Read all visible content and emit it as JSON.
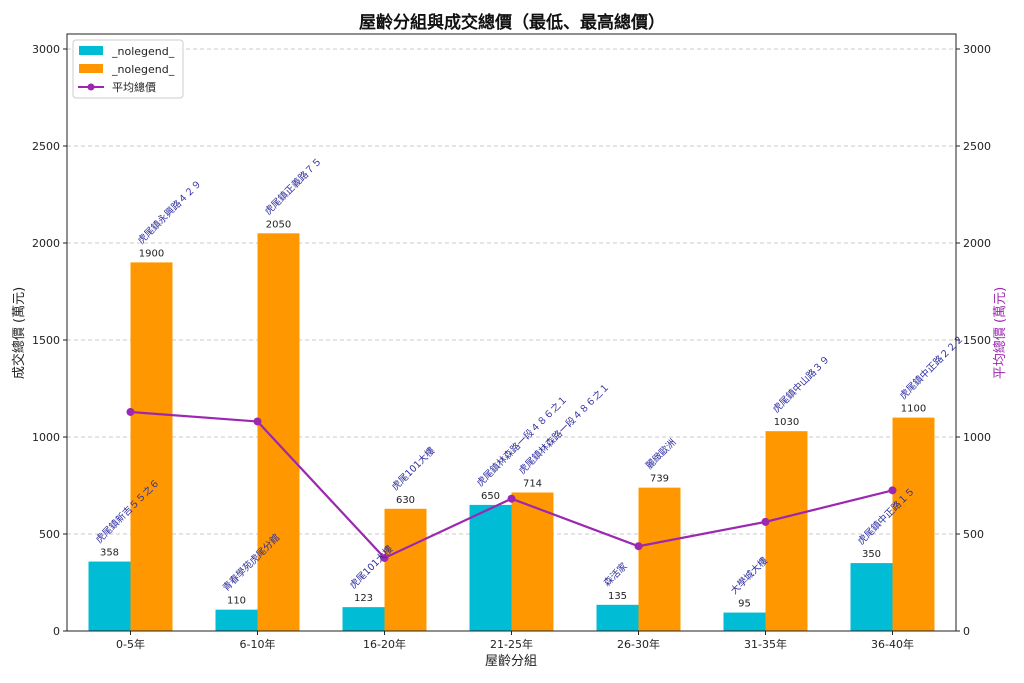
{
  "chart_data": {
    "type": "bar",
    "title": "屋齡分組與成交總價（最低、最高總價）",
    "xlabel": "屋齡分組",
    "ylabel": "成交總價 (萬元)",
    "ylabel_right": "平均總價 (萬元)",
    "ylim": [
      0,
      3000
    ],
    "yticks": [
      0,
      500,
      1000,
      1500,
      2000,
      2500,
      3000
    ],
    "grid": true,
    "legend_position": "upper left",
    "categories": [
      "0-5年",
      "6-10年",
      "16-20年",
      "21-25年",
      "26-30年",
      "31-35年",
      "36-40年"
    ],
    "series": [
      {
        "name": "_nolegend_",
        "kind": "bar",
        "color": "#00bcd4",
        "values": [
          358,
          110,
          123,
          650,
          135,
          95,
          350
        ],
        "annotations": [
          "虎尾鎮新吉５５之６",
          "青春學苑虎尾分館",
          "虎尾101大樓",
          "虎尾鎮林森路一段４８６之１",
          "森活家",
          "大學城大樓",
          "虎尾鎮中正路１５"
        ]
      },
      {
        "name": "_nolegend_",
        "kind": "bar",
        "color": "#ff9800",
        "values": [
          1900,
          2050,
          630,
          714,
          739,
          1030,
          1100
        ],
        "annotations": [
          "虎尾鎮永興路４２９",
          "虎尾鎮正義路７５",
          "虎尾101大樓",
          "虎尾鎮林森路一段４８６之１",
          "麗緻歐洲",
          "虎尾鎮中山路３９",
          "虎尾鎮中正路２２２"
        ]
      },
      {
        "name": "平均總價",
        "kind": "line",
        "color": "#9c27b0",
        "axis": "right",
        "values": [
          1129,
          1080,
          376.5,
          682,
          437,
          562.5,
          725
        ]
      }
    ]
  },
  "legend": {
    "items": [
      "_nolegend_",
      "_nolegend_",
      "平均總價"
    ]
  }
}
